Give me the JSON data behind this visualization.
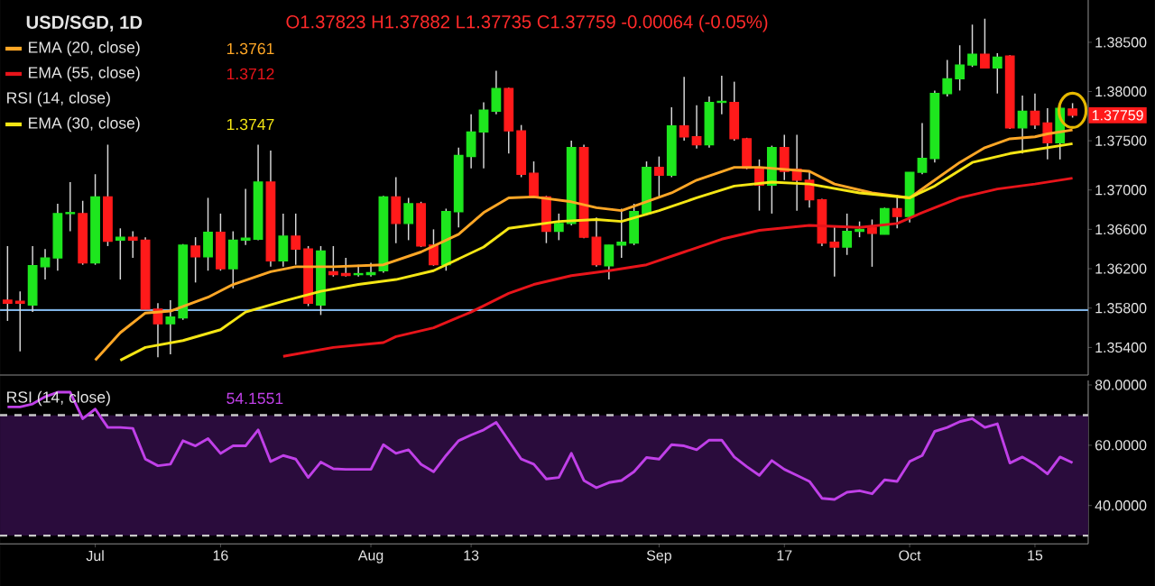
{
  "chart_data": [
    {
      "type": "candlestick",
      "title": "USD/SGD, 1D",
      "categories": [
        null,
        null,
        null,
        null,
        null,
        null,
        null,
        null,
        null,
        null,
        null,
        null,
        null,
        null,
        null,
        null,
        null,
        null,
        null,
        null,
        null,
        null,
        null,
        null,
        null,
        null,
        null,
        null,
        null,
        null,
        null,
        null,
        null,
        null,
        null,
        null,
        null,
        null,
        null,
        null,
        null,
        null,
        null,
        null,
        null,
        null,
        null,
        null,
        null,
        null,
        null,
        null,
        null,
        null,
        null,
        null,
        null,
        null,
        null,
        null,
        null,
        null,
        null,
        null,
        null,
        null,
        null,
        null,
        null,
        null,
        null,
        null,
        null,
        null,
        null,
        null,
        null,
        null,
        null,
        null,
        null,
        null,
        null,
        null,
        null,
        null
      ],
      "ohlc": [
        [
          1.3588,
          1.3643,
          1.3567,
          1.3585
        ],
        [
          1.3587,
          1.3597,
          1.3536,
          1.3585
        ],
        [
          1.3583,
          1.3643,
          1.3576,
          1.3623
        ],
        [
          1.3622,
          1.364,
          1.3609,
          1.3631
        ],
        [
          1.3631,
          1.3686,
          1.3618,
          1.3676
        ],
        [
          1.3676,
          1.3708,
          1.3658,
          1.3677
        ],
        [
          1.3676,
          1.3689,
          1.3624,
          1.3626
        ],
        [
          1.3626,
          1.3716,
          1.3624,
          1.3693
        ],
        [
          1.3693,
          1.3746,
          1.3643,
          1.3648
        ],
        [
          1.3649,
          1.3661,
          1.3609,
          1.3652
        ],
        [
          1.3652,
          1.3658,
          1.3631,
          1.3649
        ],
        [
          1.3649,
          1.3652,
          1.3579,
          1.3579
        ],
        [
          1.3579,
          1.3585,
          1.353,
          1.3564
        ],
        [
          1.3564,
          1.3588,
          1.3533,
          1.3571
        ],
        [
          1.357,
          1.3645,
          1.3568,
          1.3644
        ],
        [
          1.3643,
          1.3652,
          1.3606,
          1.3632
        ],
        [
          1.3632,
          1.3692,
          1.3618,
          1.3657
        ],
        [
          1.3657,
          1.3676,
          1.3618,
          1.362
        ],
        [
          1.362,
          1.3658,
          1.36,
          1.3649
        ],
        [
          1.3649,
          1.3701,
          1.3644,
          1.3651
        ],
        [
          1.365,
          1.3746,
          1.3649,
          1.3708
        ],
        [
          1.3708,
          1.374,
          1.3622,
          1.3628
        ],
        [
          1.3628,
          1.3676,
          1.3622,
          1.3653
        ],
        [
          1.3653,
          1.3676,
          1.3624,
          1.364
        ],
        [
          1.364,
          1.3643,
          1.3582,
          1.3585
        ],
        [
          1.3583,
          1.3643,
          1.3573,
          1.3638
        ],
        [
          1.3617,
          1.3643,
          1.3612,
          1.3614
        ],
        [
          1.3615,
          1.3631,
          1.3612,
          1.3613
        ],
        [
          1.3614,
          1.3624,
          1.3612,
          1.3615
        ],
        [
          1.3614,
          1.3626,
          1.3612,
          1.3616
        ],
        [
          1.3618,
          1.3694,
          1.3616,
          1.3693
        ],
        [
          1.3693,
          1.3713,
          1.3646,
          1.3666
        ],
        [
          1.3666,
          1.3692,
          1.3649,
          1.3686
        ],
        [
          1.3686,
          1.3688,
          1.3642,
          1.3643
        ],
        [
          1.3644,
          1.366,
          1.3623,
          1.3624
        ],
        [
          1.3624,
          1.3681,
          1.3618,
          1.3678
        ],
        [
          1.3678,
          1.3743,
          1.3662,
          1.3735
        ],
        [
          1.3734,
          1.3777,
          1.3722,
          1.3759
        ],
        [
          1.3759,
          1.3789,
          1.3722,
          1.3781
        ],
        [
          1.378,
          1.3821,
          1.3777,
          1.3803
        ],
        [
          1.3803,
          1.3804,
          1.3737,
          1.376
        ],
        [
          1.376,
          1.3766,
          1.3713,
          1.3716
        ],
        [
          1.3717,
          1.3729,
          1.3692,
          1.3693
        ],
        [
          1.3693,
          1.3694,
          1.3646,
          1.3658
        ],
        [
          1.3658,
          1.3676,
          1.3649,
          1.3666
        ],
        [
          1.3666,
          1.375,
          1.3664,
          1.3743
        ],
        [
          1.3743,
          1.3746,
          1.3651,
          1.3652
        ],
        [
          1.3652,
          1.3672,
          1.3622,
          1.3624
        ],
        [
          1.3623,
          1.3644,
          1.3609,
          1.3644
        ],
        [
          1.3644,
          1.3681,
          1.3631,
          1.3647
        ],
        [
          1.3646,
          1.3686,
          1.3644,
          1.3678
        ],
        [
          1.3676,
          1.3729,
          1.3674,
          1.3723
        ],
        [
          1.3723,
          1.3734,
          1.3692,
          1.3715
        ],
        [
          1.3715,
          1.3784,
          1.3713,
          1.3765
        ],
        [
          1.3765,
          1.3815,
          1.375,
          1.3754
        ],
        [
          1.3754,
          1.3786,
          1.3742,
          1.3746
        ],
        [
          1.3746,
          1.3795,
          1.3743,
          1.3789
        ],
        [
          1.3789,
          1.3816,
          1.3777,
          1.379
        ],
        [
          1.3789,
          1.381,
          1.375,
          1.3752
        ],
        [
          1.3752,
          1.3753,
          1.3721,
          1.3722
        ],
        [
          1.3721,
          1.3731,
          1.3679,
          1.3705
        ],
        [
          1.3705,
          1.3745,
          1.3676,
          1.3743
        ],
        [
          1.3743,
          1.3756,
          1.371,
          1.3719
        ],
        [
          1.3721,
          1.3756,
          1.3679,
          1.371
        ],
        [
          1.371,
          1.3719,
          1.3682,
          1.369
        ],
        [
          1.369,
          1.3691,
          1.3643,
          1.3646
        ],
        [
          1.3647,
          1.3664,
          1.3612,
          1.3642
        ],
        [
          1.3642,
          1.3676,
          1.3634,
          1.3658
        ],
        [
          1.3658,
          1.3668,
          1.3652,
          1.366
        ],
        [
          1.3662,
          1.367,
          1.3622,
          1.3656
        ],
        [
          1.3655,
          1.3682,
          1.3655,
          1.3681
        ],
        [
          1.3681,
          1.3695,
          1.3661,
          1.3673
        ],
        [
          1.3673,
          1.3718,
          1.3667,
          1.3718
        ],
        [
          1.3718,
          1.3768,
          1.3716,
          1.3732
        ],
        [
          1.3732,
          1.3801,
          1.3728,
          1.3798
        ],
        [
          1.3798,
          1.3832,
          1.3795,
          1.3813
        ],
        [
          1.3813,
          1.3847,
          1.3801,
          1.3827
        ],
        [
          1.3827,
          1.3868,
          1.3825,
          1.3838
        ],
        [
          1.3838,
          1.3874,
          1.3824,
          1.3824
        ],
        [
          1.3824,
          1.3839,
          1.3798,
          1.3835
        ],
        [
          1.3836,
          1.3837,
          1.3762,
          1.3763
        ],
        [
          1.3763,
          1.3796,
          1.3737,
          1.378
        ],
        [
          1.378,
          1.3798,
          1.3762,
          1.3766
        ],
        [
          1.3768,
          1.3783,
          1.3731,
          1.3748
        ],
        [
          1.3748,
          1.3785,
          1.3731,
          1.3783
        ],
        [
          1.37823,
          1.37882,
          1.37735,
          1.37759
        ]
      ],
      "colors": [
        "#ff1a1a",
        "#ff1a1a",
        "#1ee61e",
        "#1ee61e",
        "#1ee61e",
        "#1ee61e",
        "#ff1a1a",
        "#1ee61e",
        "#ff1a1a",
        "#1ee61e",
        "#ff1a1a",
        "#ff1a1a",
        "#ff1a1a",
        "#1ee61e",
        "#1ee61e",
        "#ff1a1a",
        "#1ee61e",
        "#ff1a1a",
        "#1ee61e",
        "#1ee61e",
        "#1ee61e",
        "#ff1a1a",
        "#1ee61e",
        "#ff1a1a",
        "#ff1a1a",
        "#1ee61e",
        "#ff1a1a",
        "#ff1a1a",
        "#1ee61e",
        "#1ee61e",
        "#1ee61e",
        "#ff1a1a",
        "#1ee61e",
        "#ff1a1a",
        "#ff1a1a",
        "#1ee61e",
        "#1ee61e",
        "#1ee61e",
        "#1ee61e",
        "#1ee61e",
        "#ff1a1a",
        "#ff1a1a",
        "#ff1a1a",
        "#ff1a1a",
        "#1ee61e",
        "#1ee61e",
        "#ff1a1a",
        "#ff1a1a",
        "#1ee61e",
        "#1ee61e",
        "#1ee61e",
        "#1ee61e",
        "#ff1a1a",
        "#1ee61e",
        "#ff1a1a",
        "#ff1a1a",
        "#1ee61e",
        "#1ee61e",
        "#ff1a1a",
        "#ff1a1a",
        "#ff1a1a",
        "#1ee61e",
        "#ff1a1a",
        "#ff1a1a",
        "#ff1a1a",
        "#ff1a1a",
        "#ff1a1a",
        "#1ee61e",
        "#1ee61e",
        "#ff1a1a",
        "#1ee61e",
        "#ff1a1a",
        "#1ee61e",
        "#1ee61e",
        "#1ee61e",
        "#1ee61e",
        "#1ee61e",
        "#1ee61e",
        "#ff1a1a",
        "#1ee61e",
        "#ff1a1a",
        "#1ee61e",
        "#ff1a1a",
        "#ff1a1a",
        "#1ee61e",
        "#ff1a1a"
      ],
      "series": [
        {
          "name": "EMA (20, close)",
          "type": "line",
          "color": "#ffa726",
          "values": [
            null,
            null,
            null,
            null,
            null,
            null,
            null,
            1.3527,
            null,
            1.3555,
            null,
            1.3575,
            null,
            1.3577,
            null,
            null,
            1.3591,
            null,
            1.3604,
            null,
            null,
            1.3617,
            null,
            1.3622,
            null,
            null,
            1.3622,
            null,
            null,
            null,
            1.3624,
            null,
            null,
            1.3637,
            null,
            null,
            1.3655,
            null,
            1.3677,
            null,
            1.3692,
            null,
            1.3693,
            null,
            null,
            1.3688,
            null,
            1.3682,
            null,
            1.3679,
            null,
            1.3688,
            null,
            1.3697,
            null,
            1.371,
            null,
            null,
            1.3723,
            null,
            1.3723,
            null,
            null,
            null,
            1.3719,
            null,
            1.3706,
            null,
            null,
            1.3697,
            null,
            null,
            1.3692,
            null,
            1.371,
            null,
            1.3728,
            null,
            1.3743,
            null,
            1.3752,
            null,
            1.3754,
            1.3757,
            null,
            1.3761
          ]
        },
        {
          "name": "EMA (55, close)",
          "type": "line",
          "color": "#e8141a",
          "values": [
            null,
            null,
            null,
            null,
            null,
            null,
            null,
            null,
            null,
            null,
            null,
            null,
            null,
            null,
            null,
            null,
            null,
            null,
            null,
            null,
            null,
            null,
            1.3531,
            null,
            null,
            null,
            1.354,
            null,
            null,
            null,
            1.3545,
            1.3551,
            null,
            null,
            1.356,
            null,
            null,
            1.3576,
            null,
            null,
            1.3595,
            null,
            1.3604,
            null,
            null,
            1.3613,
            null,
            null,
            1.3618,
            null,
            null,
            1.3624,
            null,
            null,
            1.3637,
            null,
            null,
            1.365,
            null,
            null,
            1.3659,
            null,
            null,
            null,
            1.3664,
            null,
            null,
            null,
            1.3662,
            null,
            null,
            1.3666,
            null,
            1.3677,
            null,
            null,
            1.3692,
            null,
            null,
            1.3701,
            null,
            null,
            1.3706,
            null,
            null,
            1.3712
          ]
        },
        {
          "name": "EMA (30, close)",
          "type": "line",
          "color": "#f5e614",
          "values": [
            null,
            null,
            null,
            null,
            null,
            null,
            null,
            null,
            null,
            1.3527,
            null,
            1.354,
            null,
            null,
            1.3547,
            null,
            null,
            1.3558,
            null,
            1.3576,
            null,
            null,
            1.3587,
            null,
            null,
            1.3597,
            null,
            null,
            1.3604,
            null,
            null,
            1.3609,
            null,
            null,
            1.3618,
            null,
            null,
            null,
            1.3642,
            null,
            1.3661,
            null,
            null,
            null,
            1.3668,
            null,
            null,
            1.367,
            null,
            1.3668,
            null,
            null,
            1.3679,
            null,
            null,
            1.3692,
            null,
            null,
            1.3704,
            null,
            null,
            1.3708,
            null,
            null,
            1.3706,
            null,
            null,
            null,
            1.3697,
            null,
            null,
            null,
            1.3692,
            null,
            1.3704,
            null,
            null,
            1.3728,
            null,
            null,
            1.3737,
            null,
            1.3741,
            null,
            null,
            1.3747
          ]
        }
      ],
      "ylim": [
        1.3512,
        1.3893
      ],
      "yticks": [
        {
          "value": 1.354,
          "label": "1.35400"
        },
        {
          "value": 1.358,
          "label": "1.35800"
        },
        {
          "value": 1.362,
          "label": "1.36200"
        },
        {
          "value": 1.366,
          "label": "1.36600"
        },
        {
          "value": 1.37,
          "label": "1.37000"
        },
        {
          "value": 1.375,
          "label": "1.37500"
        },
        {
          "value": 1.38,
          "label": "1.38000"
        },
        {
          "value": 1.385,
          "label": "1.38500"
        }
      ],
      "ref_lines": [
        {
          "axis": "y",
          "value": 1.3578,
          "color": "#7fb3e6"
        }
      ],
      "annotations": [
        "O1.37823 H1.37882 L1.37735 C1.37759 -0.00064 (-0.05%)",
        "1.3761",
        "1.3712",
        "RSI (14, close)",
        "1.3747",
        "1.37759"
      ],
      "legend": "top left",
      "tick_labels": "y"
    },
    {
      "type": "line",
      "categories": [
        null,
        null,
        null,
        null,
        null,
        null,
        null,
        "Jul",
        null,
        null,
        null,
        null,
        null,
        null,
        null,
        null,
        null,
        "16",
        null,
        null,
        null,
        null,
        null,
        null,
        null,
        null,
        null,
        null,
        null,
        "Aug",
        null,
        null,
        null,
        null,
        null,
        null,
        null,
        "13",
        null,
        null,
        null,
        null,
        null,
        null,
        null,
        null,
        null,
        null,
        null,
        null,
        null,
        null,
        "Sep",
        null,
        null,
        null,
        null,
        null,
        null,
        null,
        null,
        null,
        "17",
        null,
        null,
        null,
        null,
        null,
        null,
        null,
        null,
        null,
        "Oct",
        null,
        null,
        null,
        null,
        null,
        null,
        null,
        null,
        null,
        "15",
        null,
        null,
        null
      ],
      "series": [
        {
          "name": "RSI (14, close)",
          "color": "#c040e8",
          "values": [
            72.7,
            72.7,
            73.7,
            76.1,
            77.6,
            77.6,
            68.8,
            72.0,
            65.9,
            65.9,
            65.6,
            55.4,
            53.2,
            53.7,
            61.5,
            59.8,
            62.2,
            57.3,
            59.8,
            59.8,
            65.1,
            54.6,
            56.6,
            55.4,
            49.3,
            54.4,
            52.2,
            52.0,
            52.0,
            52.0,
            60.2,
            57.3,
            58.5,
            53.7,
            51.2,
            56.6,
            61.5,
            63.4,
            65.1,
            67.6,
            61.5,
            55.4,
            53.7,
            48.8,
            49.3,
            57.3,
            48.3,
            45.9,
            47.6,
            48.3,
            51.2,
            55.9,
            55.4,
            60.2,
            59.8,
            58.5,
            61.7,
            61.7,
            56.1,
            52.9,
            50.0,
            54.9,
            52.0,
            50.0,
            48.0,
            42.4,
            42.0,
            44.4,
            44.9,
            43.9,
            48.5,
            48.0,
            54.6,
            56.6,
            64.6,
            65.9,
            67.8,
            68.8,
            65.9,
            67.1,
            54.1,
            56.1,
            53.7,
            50.5,
            56.1,
            54.2
          ]
        }
      ],
      "ylim": [
        27.3,
        81.5
      ],
      "yticks": [
        {
          "value": 40,
          "label": "40.0000"
        },
        {
          "value": 60,
          "label": "60.0000"
        },
        {
          "value": 80,
          "label": "80.0000"
        }
      ],
      "ref_lines": [
        {
          "axis": "y",
          "value": 70,
          "color": "#c8c8c8",
          "line_style": "dashed"
        },
        {
          "axis": "y",
          "value": 30,
          "color": "#c8c8c8",
          "line_style": "dashed"
        }
      ],
      "bands": [
        {
          "axis": "y",
          "from": 30,
          "to": 70,
          "color": "#2a0c3c"
        }
      ],
      "annotations": [
        "54.1551"
      ],
      "legend": "top left"
    }
  ]
}
